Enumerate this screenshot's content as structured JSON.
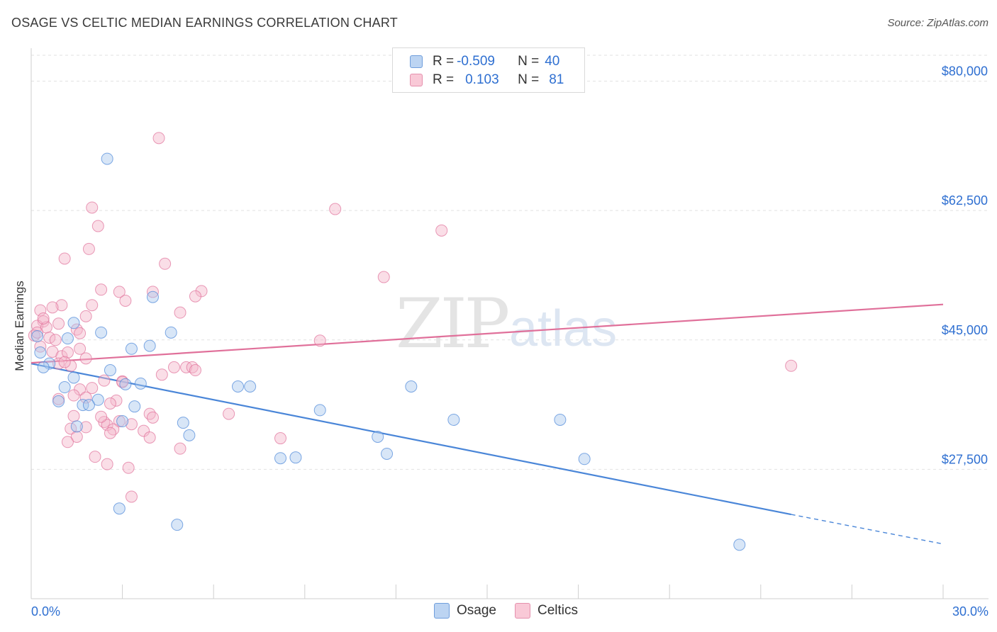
{
  "title": "OSAGE VS CELTIC MEDIAN EARNINGS CORRELATION CHART",
  "source": "Source: ZipAtlas.com",
  "watermark": {
    "zip": "ZIP",
    "atlas": "atlas"
  },
  "legend": {
    "rows": [
      {
        "r_label": "R = ",
        "r_value": "-0.509",
        "n_label": "N = ",
        "n_value": "40",
        "color": "#a9c8ee"
      },
      {
        "r_label": "R = ",
        "r_value": "0.103",
        "n_label": "N = ",
        "n_value": "81",
        "color": "#f4b6c9"
      }
    ]
  },
  "bottom_legend": [
    {
      "label": "Osage",
      "color": "#a9c8ee"
    },
    {
      "label": "Celtics",
      "color": "#f4b6c9"
    }
  ],
  "chart_data": {
    "type": "scatter",
    "title": "OSAGE VS CELTIC MEDIAN EARNINGS CORRELATION CHART",
    "xlabel": "",
    "ylabel": "Median Earnings",
    "xlim": [
      0,
      30
    ],
    "ylim": [
      10000,
      83500
    ],
    "x_tick_labels": [
      "0.0%",
      "30.0%"
    ],
    "y_ticks": [
      27500,
      45000,
      62500,
      80000
    ],
    "y_tick_labels": [
      "$27,500",
      "$45,000",
      "$62,500",
      "$80,000"
    ],
    "grid": true,
    "legend_position": "top-center",
    "series": [
      {
        "name": "Osage",
        "color": "#4a86d8",
        "fill": "#a9c8ee",
        "trend": {
          "x": [
            0,
            25.0
          ],
          "y": [
            41800,
            21400
          ],
          "dashed_to": [
            30,
            17400
          ]
        },
        "points": [
          [
            2.5,
            69500
          ],
          [
            4.0,
            50800
          ],
          [
            1.4,
            47300
          ],
          [
            2.3,
            46000
          ],
          [
            4.6,
            46000
          ],
          [
            1.2,
            45200
          ],
          [
            3.9,
            44200
          ],
          [
            3.3,
            43800
          ],
          [
            0.3,
            43300
          ],
          [
            0.6,
            41800
          ],
          [
            0.4,
            41300
          ],
          [
            2.6,
            40900
          ],
          [
            1.4,
            39900
          ],
          [
            3.1,
            39000
          ],
          [
            1.1,
            38600
          ],
          [
            6.8,
            38700
          ],
          [
            7.2,
            38700
          ],
          [
            12.5,
            38700
          ],
          [
            0.9,
            36700
          ],
          [
            2.2,
            36900
          ],
          [
            1.7,
            36200
          ],
          [
            1.9,
            36200
          ],
          [
            3.4,
            36000
          ],
          [
            9.5,
            35500
          ],
          [
            1.5,
            33300
          ],
          [
            3.0,
            34000
          ],
          [
            5.0,
            33800
          ],
          [
            13.9,
            34200
          ],
          [
            17.4,
            34200
          ],
          [
            5.2,
            32100
          ],
          [
            11.4,
            31900
          ],
          [
            8.2,
            29000
          ],
          [
            8.7,
            29100
          ],
          [
            11.7,
            29600
          ],
          [
            18.2,
            28900
          ],
          [
            2.9,
            22200
          ],
          [
            4.8,
            20000
          ],
          [
            23.3,
            17300
          ],
          [
            0.2,
            45500
          ],
          [
            3.6,
            39100
          ]
        ]
      },
      {
        "name": "Celtics",
        "color": "#e0709a",
        "fill": "#f4b6c9",
        "trend": {
          "x": [
            0,
            30
          ],
          "y": [
            41900,
            49800
          ]
        },
        "points": [
          [
            4.2,
            72300
          ],
          [
            2.0,
            62900
          ],
          [
            10.0,
            62700
          ],
          [
            2.2,
            60400
          ],
          [
            13.5,
            59800
          ],
          [
            1.9,
            57300
          ],
          [
            1.1,
            56000
          ],
          [
            4.4,
            55300
          ],
          [
            11.6,
            53500
          ],
          [
            2.3,
            51800
          ],
          [
            2.9,
            51500
          ],
          [
            4.0,
            51500
          ],
          [
            5.6,
            51600
          ],
          [
            5.4,
            50900
          ],
          [
            3.1,
            50300
          ],
          [
            1.0,
            49700
          ],
          [
            2.0,
            49700
          ],
          [
            0.7,
            49400
          ],
          [
            0.3,
            49000
          ],
          [
            4.9,
            48700
          ],
          [
            1.8,
            48200
          ],
          [
            0.4,
            47500
          ],
          [
            0.9,
            47200
          ],
          [
            0.2,
            46900
          ],
          [
            0.5,
            46700
          ],
          [
            1.5,
            46400
          ],
          [
            1.6,
            45900
          ],
          [
            0.1,
            45600
          ],
          [
            0.6,
            45300
          ],
          [
            0.8,
            45000
          ],
          [
            9.5,
            44900
          ],
          [
            0.3,
            44100
          ],
          [
            1.6,
            43800
          ],
          [
            0.7,
            43400
          ],
          [
            1.0,
            42800
          ],
          [
            1.8,
            42500
          ],
          [
            0.9,
            41800
          ],
          [
            1.3,
            41500
          ],
          [
            4.7,
            41300
          ],
          [
            5.1,
            41300
          ],
          [
            5.3,
            41300
          ],
          [
            25.0,
            41500
          ],
          [
            4.3,
            40300
          ],
          [
            2.4,
            39500
          ],
          [
            3.0,
            39400
          ],
          [
            1.6,
            38300
          ],
          [
            2.0,
            38500
          ],
          [
            1.4,
            37500
          ],
          [
            1.8,
            37200
          ],
          [
            0.9,
            37000
          ],
          [
            2.8,
            36800
          ],
          [
            2.6,
            36400
          ],
          [
            6.5,
            35000
          ],
          [
            3.9,
            35000
          ],
          [
            1.4,
            34700
          ],
          [
            4.0,
            34500
          ],
          [
            2.9,
            34000
          ],
          [
            2.4,
            33900
          ],
          [
            2.5,
            33500
          ],
          [
            3.3,
            33600
          ],
          [
            1.3,
            33000
          ],
          [
            1.8,
            33200
          ],
          [
            2.7,
            32900
          ],
          [
            3.7,
            32700
          ],
          [
            2.6,
            32400
          ],
          [
            1.5,
            31900
          ],
          [
            3.9,
            31800
          ],
          [
            8.2,
            31700
          ],
          [
            1.2,
            31200
          ],
          [
            4.9,
            30300
          ],
          [
            2.1,
            29200
          ],
          [
            2.5,
            28200
          ],
          [
            3.2,
            27700
          ],
          [
            3.3,
            23800
          ],
          [
            0.2,
            46000
          ],
          [
            1.2,
            43300
          ],
          [
            0.4,
            47900
          ],
          [
            2.3,
            34600
          ],
          [
            3.0,
            39300
          ],
          [
            5.4,
            40900
          ],
          [
            1.1,
            42000
          ]
        ]
      }
    ]
  }
}
